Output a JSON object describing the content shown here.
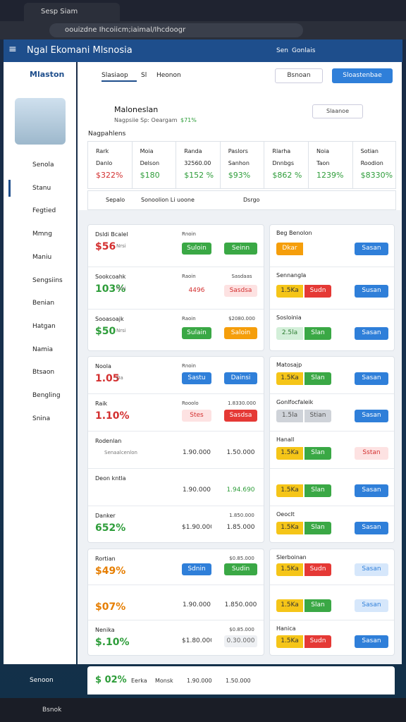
{
  "browser": {
    "tab_title": "Sesp Siam",
    "url": "oouizdne Ihcoiicm;iaimal/Ihcdoogr"
  },
  "header": {
    "title": "Ngal Ekomani Mlsnosia",
    "actions": [
      "Sen",
      "Gonlais"
    ]
  },
  "sidebar": {
    "title": "Mlaston",
    "items": [
      "Senola",
      "Stanu",
      "Fegtied",
      "Mmng",
      "Maniu",
      "Sengsiins",
      "Benian",
      "Hatgan",
      "Namia",
      "Btsaon",
      "Bengling",
      "Snina"
    ],
    "footer": "Senoon"
  },
  "tabs": {
    "items": [
      "Slasiaop",
      "Sl",
      "Heonon"
    ],
    "buttons": [
      "Bsnoan",
      "Sloastenbae"
    ]
  },
  "profile": {
    "name": "Maloneslan",
    "subtitle": "Nagpsiie Sp: Oeargam",
    "stat": "$71%",
    "button": "Slaanoe"
  },
  "section_label": "Nagpahlens",
  "stats": [
    [
      "Rark",
      "Danlo",
      "$322%"
    ],
    [
      "Moia",
      "Delson",
      "$180"
    ],
    [
      "Randa",
      "32560.00",
      "$152 %"
    ],
    [
      "Paslors",
      "Sanhon",
      "$93%"
    ],
    [
      "Rlarha",
      "Dnnbgs",
      "$862 %"
    ],
    [
      "Noia",
      "Taon",
      "1239%"
    ],
    [
      "Sotian",
      "Roodion",
      "$8330%"
    ]
  ],
  "action_row": [
    "Sepalo",
    "Sonoolion Li uoone",
    "Dsrgo"
  ],
  "left_cards": [
    {
      "rows": [
        {
          "title": "Dsldi Bcalel",
          "note1": "Rnoin",
          "value": "$56",
          "value_color": "red",
          "sub": "Nrsi",
          "cells": [
            {
              "text": "Suloin",
              "style": "green"
            },
            {
              "text": "Seinn",
              "style": "green"
            }
          ]
        },
        {
          "title": "Sookcoahk",
          "note1": "Raoin",
          "note2": "Sasdaas",
          "value": "103%",
          "value_color": "green",
          "sub": "Nrsi",
          "cells": [
            {
              "text": "4496",
              "style": "text-red"
            },
            {
              "text": "Sasdsa",
              "style": "light-red"
            }
          ]
        },
        {
          "title": "Sooasoajk",
          "note1": "Raoin",
          "note2": "$2080.000",
          "value": "$50",
          "value_color": "green",
          "sub": "Nrsi",
          "cells": [
            {
              "text": "Sulain",
              "style": "green"
            },
            {
              "text": "Saloin",
              "style": "orange"
            }
          ]
        }
      ]
    },
    {
      "rows": [
        {
          "title": "Noola",
          "note1": "Rnoin",
          "value": "1.05",
          "value_color": "red",
          "sub": "Oa",
          "cells": [
            {
              "text": "Sastu",
              "style": "blue"
            },
            {
              "text": "Dainsi",
              "style": "blue"
            }
          ]
        },
        {
          "title": "Raik",
          "note1": "Rooolo",
          "note2": "1.8330.000",
          "value": "1.10%",
          "value_color": "red",
          "cells": [
            {
              "text": "Stes",
              "style": "light-red"
            },
            {
              "text": "Sasdsa",
              "style": "red"
            }
          ]
        },
        {
          "title": "Rodenlan",
          "sub": "Senaalcenlon",
          "cells": [
            {
              "text": "1.90.000",
              "style": "plain"
            },
            {
              "text": "1.50.000",
              "style": "plain"
            }
          ]
        },
        {
          "title": "Deon kntla",
          "cells": [
            {
              "text": "1.90.000",
              "style": "plain"
            },
            {
              "text": "1.94.690",
              "style": "text-green"
            }
          ]
        },
        {
          "title": "Danker",
          "note2": "1.850.000",
          "value": "652%",
          "value_color": "green",
          "cells": [
            {
              "text": "$1.90.000",
              "style": "plain"
            },
            {
              "text": "1.85.000",
              "style": "plain"
            }
          ]
        }
      ]
    },
    {
      "rows": [
        {
          "title": "Rortian",
          "note2": "$0.85.000",
          "value": "$49%",
          "value_color": "orange",
          "cells": [
            {
              "text": "Sdnin",
              "style": "blue"
            },
            {
              "text": "Sudin",
              "style": "green"
            }
          ]
        },
        {
          "value": "$07%",
          "value_color": "orange",
          "cells": [
            {
              "text": "1.90.000",
              "style": "plain"
            },
            {
              "text": "1.850.000",
              "style": "plain"
            }
          ]
        },
        {
          "title": "Nenika",
          "note2": "$0.85.000",
          "value": "$.10%",
          "value_color": "green",
          "cells": [
            {
              "text": "$1.80.000",
              "style": "plain"
            },
            {
              "text": "0.30.000",
              "style": "light"
            }
          ]
        }
      ]
    }
  ],
  "right_cards": [
    {
      "rows": [
        {
          "title": "Beg Benolon",
          "chips": [
            {
              "text": "Dkar",
              "style": "orange"
            }
          ],
          "button": {
            "text": "Sasan",
            "style": "blue"
          }
        },
        {
          "title": "Sennangla",
          "chips": [
            {
              "text": "1.5Ka",
              "style": "yellow"
            },
            {
              "text": "Sudn",
              "style": "red"
            }
          ],
          "button": {
            "text": "Susan",
            "style": "blue"
          }
        },
        {
          "title": "Sosloinia",
          "chips": [
            {
              "text": "2.5la",
              "style": "light-green"
            },
            {
              "text": "Slan",
              "style": "green"
            }
          ],
          "button": {
            "text": "Sasan",
            "style": "blue"
          }
        }
      ]
    },
    {
      "rows": [
        {
          "title": "Matosajp",
          "chips": [
            {
              "text": "1.5Ka",
              "style": "yellow"
            },
            {
              "text": "Slan",
              "style": "green"
            }
          ],
          "button": {
            "text": "Sasan",
            "style": "blue"
          }
        },
        {
          "title": "Gonlfocfaleik",
          "chips": [
            {
              "text": "1.5la",
              "style": "gray"
            },
            {
              "text": "Stian",
              "style": "gray"
            }
          ],
          "button": {
            "text": "Sasan",
            "style": "blue"
          }
        },
        {
          "title": "Hanall",
          "chips": [
            {
              "text": "1.5Ka",
              "style": "yellow"
            },
            {
              "text": "Slan",
              "style": "green"
            }
          ],
          "button": {
            "text": "Sstan",
            "style": "light-red"
          }
        },
        {
          "chips": [
            {
              "text": "1.5Ka",
              "style": "yellow"
            },
            {
              "text": "Slan",
              "style": "green"
            }
          ],
          "button": {
            "text": "Sasan",
            "style": "blue"
          }
        },
        {
          "title": "Oeoclt",
          "chips": [
            {
              "text": "1.5Ka",
              "style": "yellow"
            },
            {
              "text": "Slan",
              "style": "green"
            }
          ],
          "button": {
            "text": "Sasan",
            "style": "blue"
          }
        }
      ]
    },
    {
      "rows": [
        {
          "title": "Slerboinan",
          "chips": [
            {
              "text": "1.5Ka",
              "style": "yellow"
            },
            {
              "text": "Sudn",
              "style": "red"
            }
          ],
          "button": {
            "text": "Sasan",
            "style": "light-blue"
          }
        },
        {
          "chips": [
            {
              "text": "1.5Ka",
              "style": "yellow"
            },
            {
              "text": "Slan",
              "style": "green"
            }
          ],
          "button": {
            "text": "Sasan",
            "style": "light-blue"
          }
        },
        {
          "title": "Hanica",
          "chips": [
            {
              "text": "1.5Ka",
              "style": "yellow"
            },
            {
              "text": "Sudn",
              "style": "red"
            }
          ],
          "button": {
            "text": "Sasan",
            "style": "blue"
          }
        }
      ]
    }
  ],
  "bottom_row": {
    "value": "$ 02%",
    "notes": [
      "Eerka",
      "Monsk",
      "1.90.000",
      "1.50.000"
    ]
  },
  "taskbar": {
    "label": "Bsnok"
  }
}
